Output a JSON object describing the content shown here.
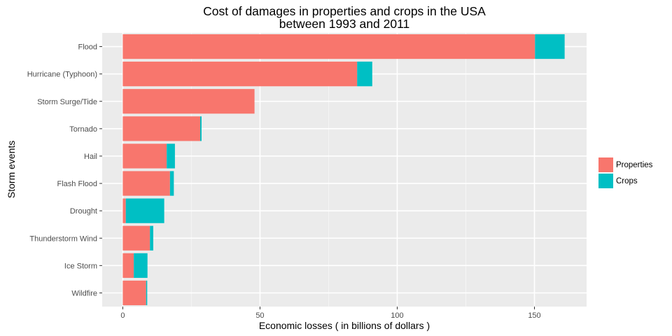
{
  "chart_data": {
    "type": "bar",
    "orientation": "horizontal",
    "stacked": true,
    "title": "Cost of damages in properties and crops in the USA\nbetween 1993 and 2011",
    "title_lines": [
      "Cost of damages in properties and crops in the USA",
      "between 1993 and 2011"
    ],
    "xlabel": "Economic losses ( in billions of dollars )",
    "ylabel": "Storm events",
    "xlim": [
      -7.5,
      169
    ],
    "xticks": [
      0,
      50,
      100,
      150
    ],
    "categories": [
      "Flood",
      "Hurricane (Typhoon)",
      "Storm Surge/Tide",
      "Tornado",
      "Hail",
      "Flash Flood",
      "Drought",
      "Thunderstorm Wind",
      "Ice Storm",
      "Wildfire"
    ],
    "series": [
      {
        "name": "Properties",
        "color": "#F8766D",
        "values": [
          150.2,
          85.4,
          48.0,
          28.2,
          16.0,
          17.2,
          1.1,
          9.9,
          4.0,
          8.5
        ]
      },
      {
        "name": "Crops",
        "color": "#00BFC4",
        "values": [
          10.8,
          5.5,
          0.0,
          0.5,
          3.0,
          1.4,
          14.0,
          1.2,
          5.0,
          0.4
        ]
      }
    ],
    "grid": true,
    "legend_position": "right",
    "panel_background": "#EBEBEB"
  }
}
